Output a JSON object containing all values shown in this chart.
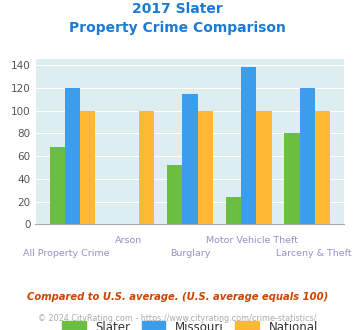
{
  "title_line1": "2017 Slater",
  "title_line2": "Property Crime Comparison",
  "categories": [
    "All Property Crime",
    "Arson",
    "Burglary",
    "Motor Vehicle Theft",
    "Larceny & Theft"
  ],
  "slater": [
    68,
    0,
    52,
    24,
    80
  ],
  "missouri": [
    120,
    0,
    115,
    138,
    120
  ],
  "national": [
    100,
    100,
    100,
    100,
    100
  ],
  "slater_color": "#6abf3e",
  "missouri_color": "#3a9eea",
  "national_color": "#ffb833",
  "bg_color": "#ddeef0",
  "title_color": "#1a7ad4",
  "label_color": "#9b8fc8",
  "ylim": [
    0,
    145
  ],
  "yticks": [
    0,
    20,
    40,
    60,
    80,
    100,
    120,
    140
  ],
  "footnote1": "Compared to U.S. average. (U.S. average equals 100)",
  "footnote2": "© 2024 CityRating.com - https://www.cityrating.com/crime-statistics/",
  "footnote1_color": "#cc4400",
  "footnote2_color": "#aaaaaa",
  "legend_labels": [
    "Slater",
    "Missouri",
    "National"
  ]
}
